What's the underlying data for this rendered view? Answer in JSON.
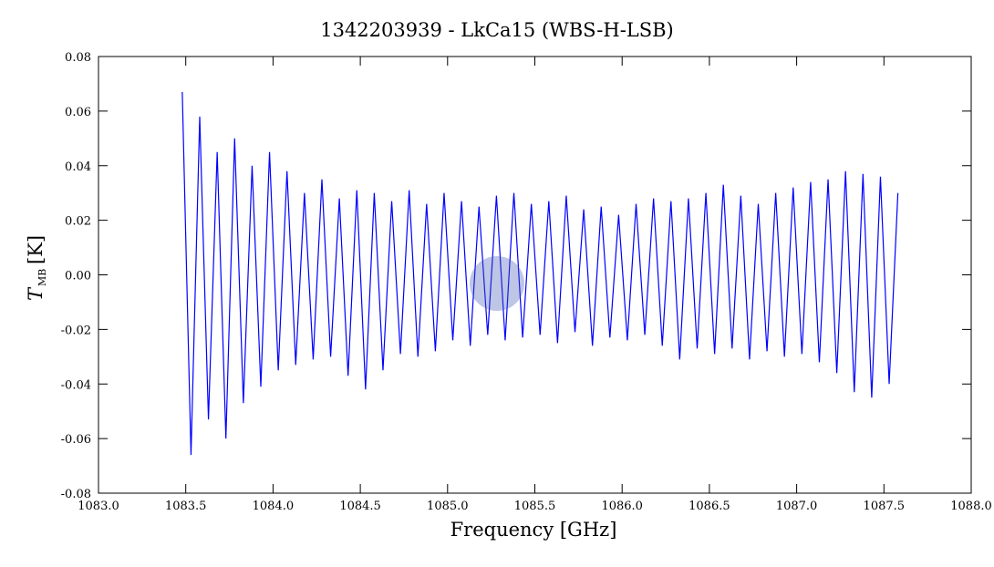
{
  "chart_data": {
    "type": "line",
    "title": "1342203939 - LkCa15 (WBS-H-LSB)",
    "xlabel": "Frequency [GHz]",
    "ylabel_symbol": "T",
    "ylabel_subscript": "MB",
    "ylabel_unit": "[K]",
    "xlim": [
      1083,
      1088
    ],
    "xticks": [
      {
        "value": 1083,
        "label": "1083.0"
      },
      {
        "value": 1083.5,
        "label": "1083.5"
      },
      {
        "value": 1084,
        "label": "1084.0"
      },
      {
        "value": 1084.5,
        "label": "1084.5"
      },
      {
        "value": 1085,
        "label": "1085.0"
      },
      {
        "value": 1085.5,
        "label": "1085.5"
      },
      {
        "value": 1086,
        "label": "1086.0"
      },
      {
        "value": 1086.5,
        "label": "1086.5"
      },
      {
        "value": 1087,
        "label": "1087.0"
      },
      {
        "value": 1087.5,
        "label": "1087.5"
      },
      {
        "value": 1088,
        "label": "1088.0"
      }
    ],
    "ylim": [
      -0.08,
      0.08
    ],
    "yticks": [
      -0.08,
      -0.06,
      -0.04,
      -0.02,
      {
        "value": 0,
        "label": "0.00"
      },
      0.02,
      0.04,
      0.06,
      0.08
    ],
    "grid": false,
    "x": [
      1083.48,
      1083.53,
      1083.58,
      1083.63,
      1083.68,
      1083.73,
      1083.78,
      1083.83,
      1083.88,
      1083.93,
      1083.98,
      1084.03,
      1084.08,
      1084.13,
      1084.18,
      1084.23,
      1084.28,
      1084.33,
      1084.38,
      1084.43,
      1084.48,
      1084.53,
      1084.58,
      1084.63,
      1084.68,
      1084.73,
      1084.78,
      1084.83,
      1084.88,
      1084.93,
      1084.98,
      1085.03,
      1085.08,
      1085.13,
      1085.18,
      1085.23,
      1085.28,
      1085.33,
      1085.38,
      1085.43,
      1085.48,
      1085.53,
      1085.58,
      1085.63,
      1085.68,
      1085.73,
      1085.78,
      1085.83,
      1085.88,
      1085.93,
      1085.98,
      1086.03,
      1086.08,
      1086.13,
      1086.18,
      1086.23,
      1086.28,
      1086.33,
      1086.38,
      1086.43,
      1086.48,
      1086.53,
      1086.58,
      1086.63,
      1086.68,
      1086.73,
      1086.78,
      1086.83,
      1086.88,
      1086.93,
      1086.98,
      1087.03,
      1087.08,
      1087.13,
      1087.18,
      1087.23,
      1087.28,
      1087.33,
      1087.38,
      1087.43,
      1087.48,
      1087.53,
      1087.58
    ],
    "series": [
      {
        "color": "#0000ff",
        "values": [
          0.067,
          -0.066,
          0.058,
          -0.053,
          0.045,
          -0.06,
          0.05,
          -0.047,
          0.04,
          -0.041,
          0.045,
          -0.035,
          0.038,
          -0.033,
          0.03,
          -0.031,
          0.035,
          -0.03,
          0.028,
          -0.037,
          0.031,
          -0.042,
          0.03,
          -0.035,
          0.027,
          -0.029,
          0.031,
          -0.03,
          0.026,
          -0.028,
          0.03,
          -0.024,
          0.027,
          -0.026,
          0.025,
          -0.022,
          0.029,
          -0.024,
          0.03,
          -0.023,
          0.026,
          -0.022,
          0.027,
          -0.025,
          0.029,
          -0.021,
          0.024,
          -0.026,
          0.025,
          -0.023,
          0.022,
          -0.024,
          0.026,
          -0.022,
          0.028,
          -0.026,
          0.027,
          -0.031,
          0.028,
          -0.027,
          0.03,
          -0.029,
          0.033,
          -0.027,
          0.029,
          -0.031,
          0.026,
          -0.028,
          0.03,
          -0.03,
          0.032,
          -0.029,
          0.034,
          -0.032,
          0.035,
          -0.036,
          0.038,
          -0.043,
          0.037,
          -0.045,
          0.036,
          -0.04,
          0.03
        ]
      }
    ]
  }
}
